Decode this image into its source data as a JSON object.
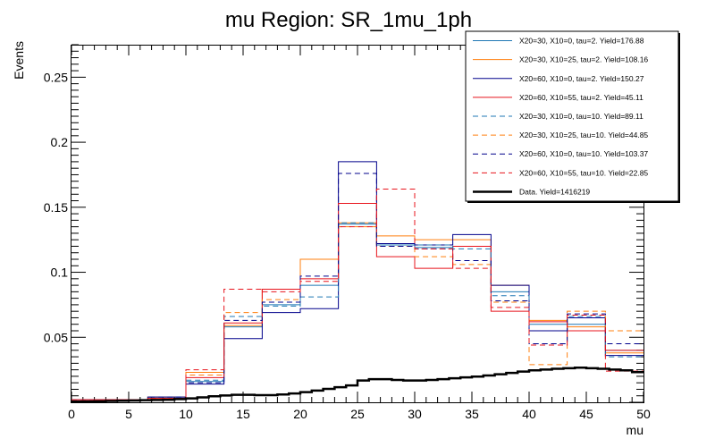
{
  "chart_data": {
    "type": "line",
    "title": "mu Region: SR_1mu_1ph",
    "xlabel": "mu",
    "ylabel": "Events",
    "xlim": [
      0,
      50
    ],
    "ylim": [
      0,
      0.275
    ],
    "x_ticks": [
      "0",
      "5",
      "10",
      "15",
      "20",
      "25",
      "30",
      "35",
      "40",
      "45",
      "50"
    ],
    "y_ticks": [
      "0.05",
      "0.1",
      "0.15",
      "0.2",
      "0.25"
    ],
    "x_tick_values": [
      0,
      5,
      10,
      15,
      20,
      25,
      30,
      35,
      40,
      45,
      50
    ],
    "y_tick_values": [
      0.05,
      0.1,
      0.15,
      0.2,
      0.25
    ],
    "bin_edges": [
      0,
      3.33,
      6.67,
      10,
      13.33,
      16.67,
      20,
      23.33,
      26.67,
      30,
      33.33,
      36.67,
      40,
      43.33,
      46.67,
      50
    ],
    "legend_position": "top-right",
    "series": [
      {
        "name": "X20=30, X10=0, tau=2. Yield=176.88",
        "color": "#1f77b4",
        "dash": "solid",
        "values": [
          0.002,
          0.002,
          0.004,
          0.016,
          0.058,
          0.075,
          0.09,
          0.137,
          0.121,
          0.119,
          0.12,
          0.085,
          0.06,
          0.06,
          0.04
        ]
      },
      {
        "name": "X20=30, X10=25, tau=2. Yield=108.16",
        "color": "#ff7f0e",
        "dash": "solid",
        "values": [
          0.002,
          0.002,
          0.004,
          0.023,
          0.059,
          0.087,
          0.11,
          0.138,
          0.128,
          0.125,
          0.125,
          0.09,
          0.063,
          0.058,
          0.038
        ]
      },
      {
        "name": "X20=60, X10=0, tau=2. Yield=150.27",
        "color": "#00008b",
        "dash": "solid",
        "values": [
          0.002,
          0.002,
          0.004,
          0.014,
          0.049,
          0.069,
          0.072,
          0.185,
          0.122,
          0.121,
          0.129,
          0.09,
          0.055,
          0.065,
          0.036
        ]
      },
      {
        "name": "X20=60, X10=55, tau=2. Yield=45.11",
        "color": "#e8141c",
        "dash": "solid",
        "values": [
          0.002,
          0.002,
          0.003,
          0.019,
          0.061,
          0.087,
          0.095,
          0.153,
          0.112,
          0.103,
          0.12,
          0.07,
          0.062,
          0.055,
          0.04
        ]
      },
      {
        "name": "X20=30, X10=0, tau=10. Yield=89.11",
        "color": "#1f77b4",
        "dash": "dashed",
        "values": [
          0.002,
          0.002,
          0.004,
          0.017,
          0.066,
          0.074,
          0.081,
          0.138,
          0.121,
          0.121,
          0.118,
          0.082,
          0.045,
          0.066,
          0.035
        ]
      },
      {
        "name": "X20=30, X10=25, tau=10. Yield=44.85",
        "color": "#ff7f0e",
        "dash": "dashed",
        "values": [
          0.002,
          0.002,
          0.003,
          0.021,
          0.069,
          0.079,
          0.11,
          0.135,
          0.12,
          0.112,
          0.106,
          0.077,
          0.029,
          0.07,
          0.055
        ]
      },
      {
        "name": "X20=60, X10=0, tau=10. Yield=103.37",
        "color": "#00008b",
        "dash": "dashed",
        "values": [
          0.002,
          0.002,
          0.004,
          0.015,
          0.063,
          0.077,
          0.097,
          0.176,
          0.12,
          0.118,
          0.109,
          0.078,
          0.045,
          0.068,
          0.045
        ]
      },
      {
        "name": "X20=60, X10=55, tau=10. Yield=22.85",
        "color": "#e8141c",
        "dash": "dashed",
        "values": [
          0.002,
          0.002,
          0.003,
          0.025,
          0.087,
          0.085,
          0.093,
          0.135,
          0.164,
          0.118,
          0.103,
          0.073,
          0.044,
          0.067,
          0.024
        ]
      },
      {
        "name": "Data. Yield=1416219",
        "color": "#000000",
        "dash": "thick",
        "x": [
          0,
          1,
          2,
          3,
          4,
          5,
          6,
          7,
          8,
          9,
          10,
          11,
          12,
          13,
          14,
          15,
          16,
          17,
          18,
          19,
          20,
          21,
          22,
          23,
          24,
          25,
          26,
          27,
          28,
          29,
          30,
          31,
          32,
          33,
          34,
          35,
          36,
          37,
          38,
          39,
          40,
          41,
          42,
          43,
          44,
          45,
          46,
          47,
          48,
          49
        ],
        "values": [
          0.0005,
          0.0006,
          0.0008,
          0.001,
          0.0012,
          0.0014,
          0.0016,
          0.0018,
          0.002,
          0.0025,
          0.003,
          0.0038,
          0.0046,
          0.0052,
          0.0058,
          0.0058,
          0.0055,
          0.0055,
          0.006,
          0.0068,
          0.0078,
          0.009,
          0.0103,
          0.0116,
          0.013,
          0.0168,
          0.0178,
          0.0178,
          0.0172,
          0.0168,
          0.0168,
          0.0172,
          0.0178,
          0.0185,
          0.0192,
          0.0198,
          0.0206,
          0.0216,
          0.0226,
          0.0236,
          0.0246,
          0.0252,
          0.0258,
          0.0262,
          0.0266,
          0.0262,
          0.0258,
          0.0252,
          0.0246,
          0.0232
        ]
      }
    ]
  }
}
